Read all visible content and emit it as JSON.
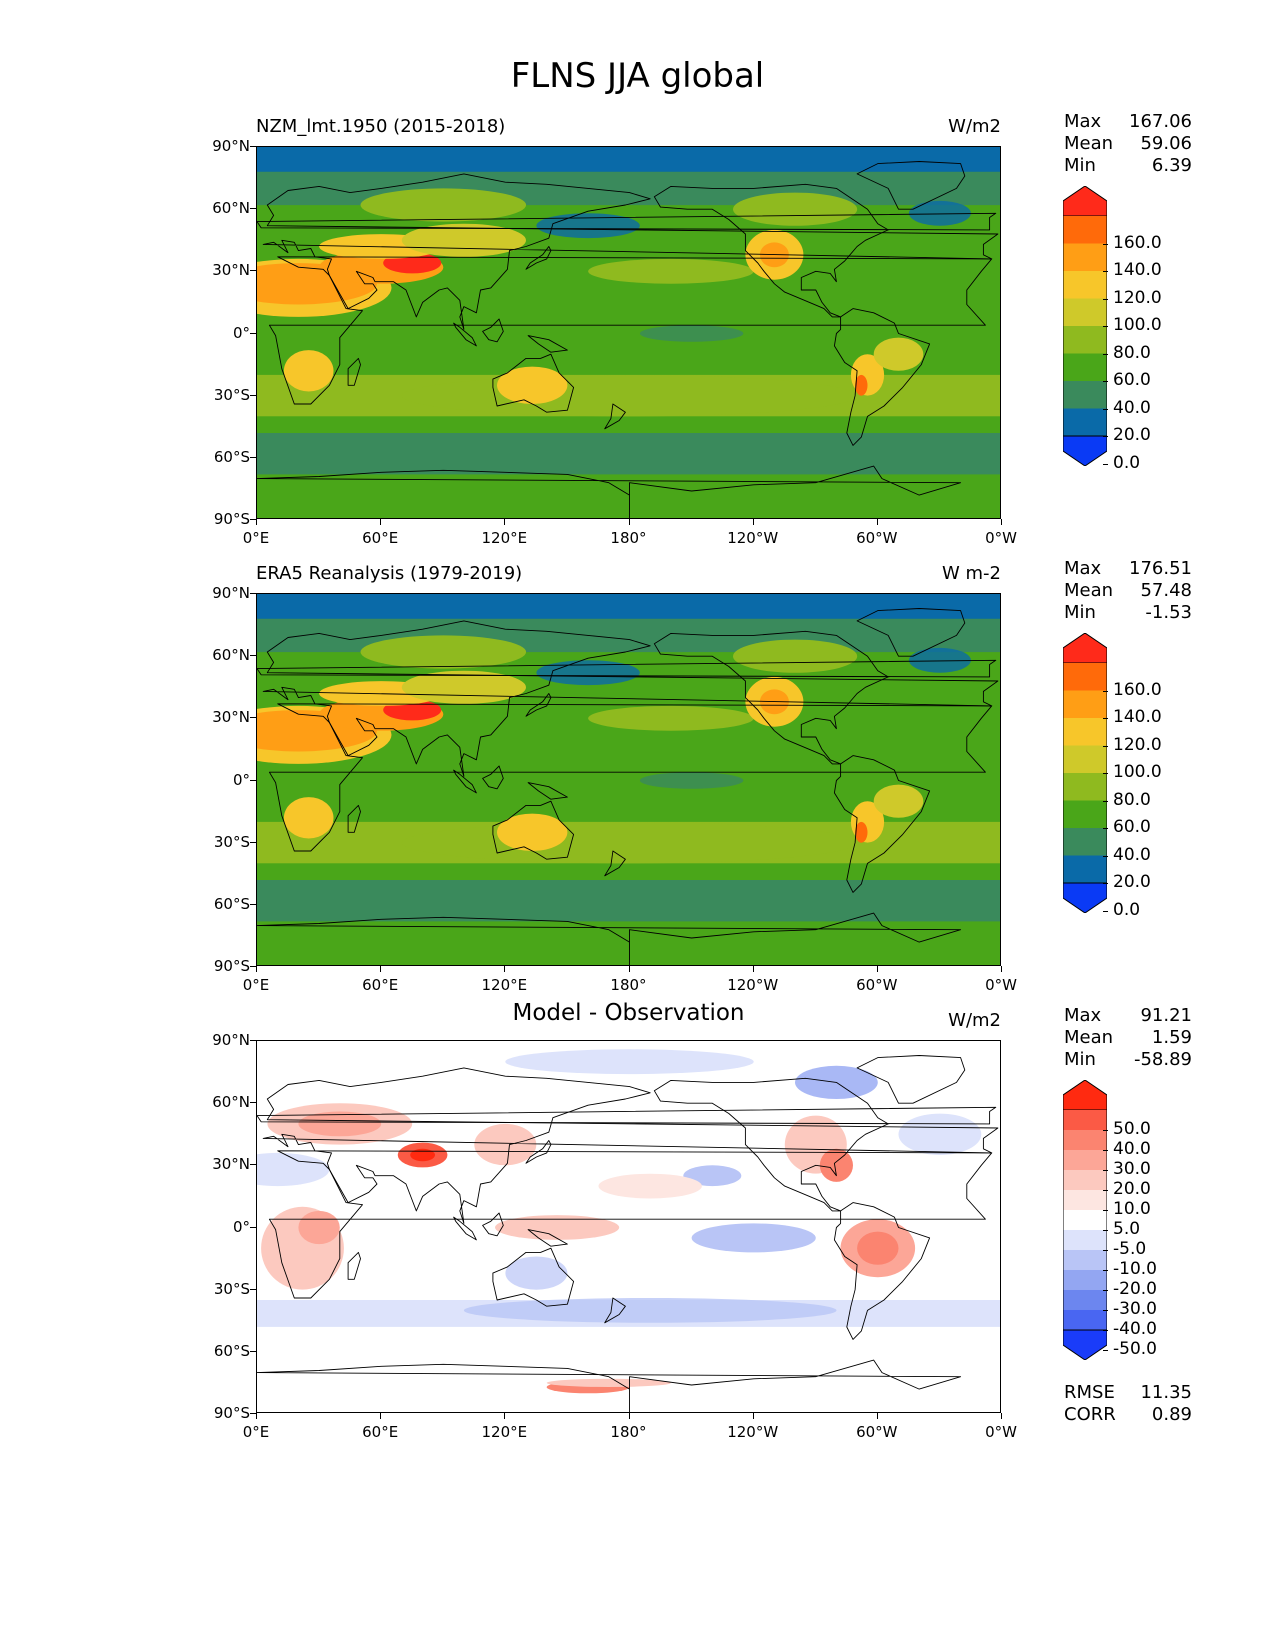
{
  "figure": {
    "title": "FLNS JJA global"
  },
  "axes": {
    "y_labels": [
      "90°N",
      "60°N",
      "30°N",
      "0°",
      "30°S",
      "60°S",
      "90°S"
    ],
    "x_labels": [
      "0°E",
      "60°E",
      "120°E",
      "180°",
      "120°W",
      "60°W",
      "0°W"
    ]
  },
  "panels": [
    {
      "id": "model",
      "title": "NZM_lmt.1950 (2015-2018)",
      "title_style": "left",
      "units": "W/m2",
      "stats": [
        {
          "label": "Max",
          "value": "167.06"
        },
        {
          "label": "Mean",
          "value": "59.06"
        },
        {
          "label": "Min",
          "value": "6.39"
        }
      ],
      "colorbar": {
        "labels": [
          "160.0",
          "140.0",
          "120.0",
          "100.0",
          "80.0",
          "60.0",
          "40.0",
          "20.0",
          "0.0"
        ],
        "colors": [
          "#ff2a1a",
          "#ff6a0a",
          "#ff9e15",
          "#f7c62a",
          "#cfc92a",
          "#8fba1f",
          "#4aa619",
          "#3a8a5c",
          "#0a6aa8",
          "#0a3af5"
        ]
      },
      "field_type": "absolute"
    },
    {
      "id": "obs",
      "title": "ERA5 Reanalysis (1979-2019)",
      "title_style": "left",
      "units": "W m-2",
      "stats": [
        {
          "label": "Max",
          "value": "176.51"
        },
        {
          "label": "Mean",
          "value": "57.48"
        },
        {
          "label": "Min",
          "value": "-1.53"
        }
      ],
      "colorbar": {
        "labels": [
          "160.0",
          "140.0",
          "120.0",
          "100.0",
          "80.0",
          "60.0",
          "40.0",
          "20.0",
          "0.0"
        ],
        "colors": [
          "#ff2a1a",
          "#ff6a0a",
          "#ff9e15",
          "#f7c62a",
          "#cfc92a",
          "#8fba1f",
          "#4aa619",
          "#3a8a5c",
          "#0a6aa8",
          "#0a3af5"
        ]
      },
      "field_type": "absolute"
    },
    {
      "id": "diff",
      "title": "Model - Observation",
      "title_style": "center",
      "units": "W/m2",
      "stats": [
        {
          "label": "Max",
          "value": "91.21"
        },
        {
          "label": "Mean",
          "value": "1.59"
        },
        {
          "label": "Min",
          "value": "-58.89"
        }
      ],
      "colorbar": {
        "labels": [
          "50.0",
          "40.0",
          "30.0",
          "20.0",
          "10.0",
          "5.0",
          "-5.0",
          "-10.0",
          "-20.0",
          "-30.0",
          "-40.0",
          "-50.0"
        ],
        "colors": [
          "#ff2a10",
          "#fb5a45",
          "#fb8470",
          "#fca697",
          "#fcc9bf",
          "#fde6e1",
          "#ffffff",
          "#dde3fb",
          "#b9c5f6",
          "#93a6f2",
          "#6c86ef",
          "#4966f2",
          "#1a3cf9"
        ]
      },
      "extra_stats": [
        {
          "label": "RMSE",
          "value": "11.35"
        },
        {
          "label": "CORR",
          "value": "0.89"
        }
      ],
      "field_type": "difference"
    }
  ]
}
